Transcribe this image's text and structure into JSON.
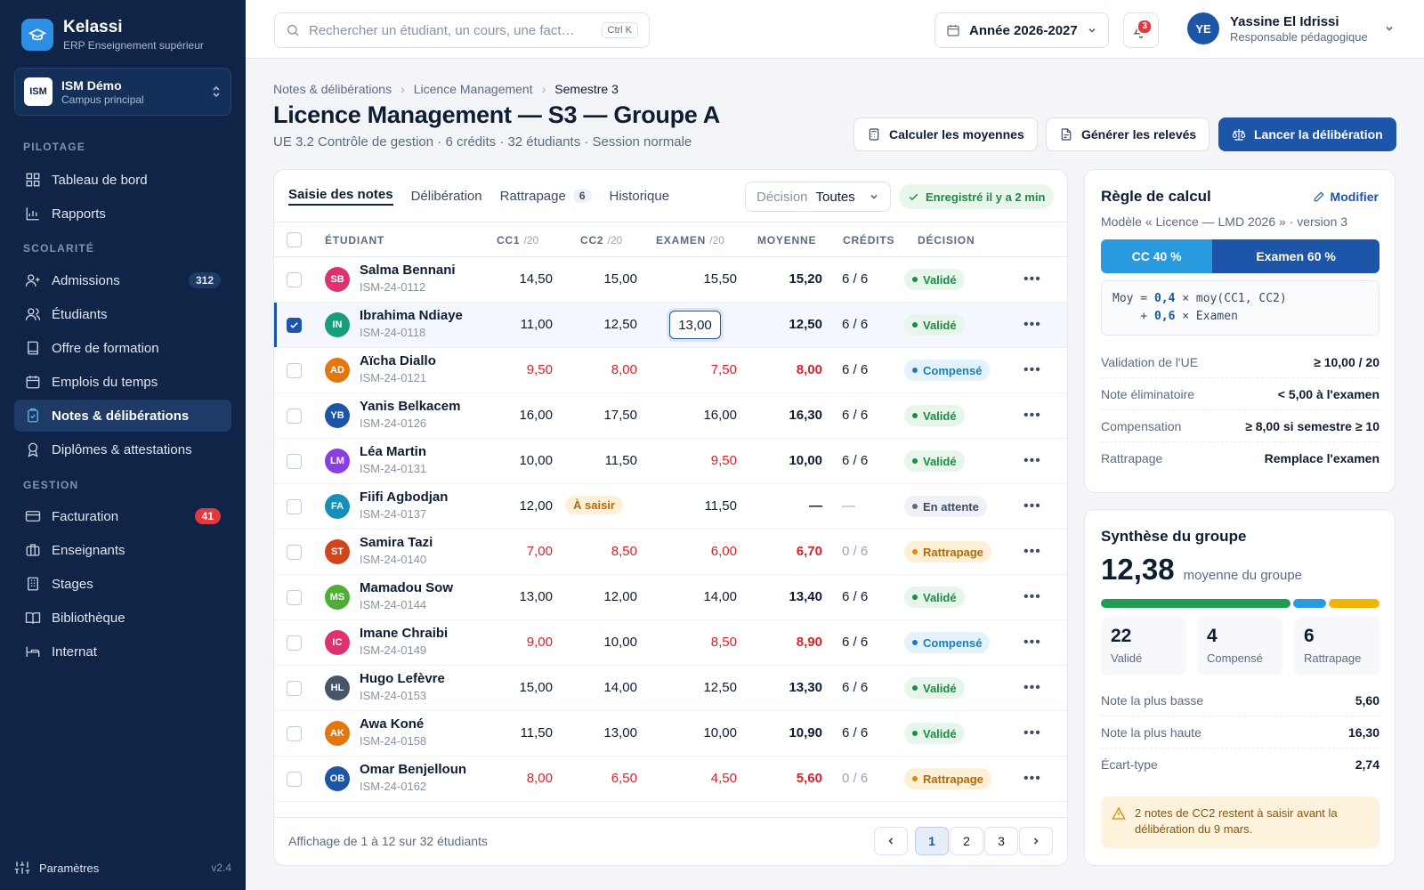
{
  "brand": {
    "name": "Kelassi",
    "subtitle": "ERP Enseignement supérieur"
  },
  "campus": {
    "logo": "ISM",
    "name": "ISM Démo",
    "subtitle": "Campus principal"
  },
  "nav": {
    "sections": [
      "PILOTAGE",
      "SCOLARITÉ",
      "GESTION"
    ],
    "pilotage": [
      {
        "label": "Tableau de bord",
        "icon": "dashboard-icon"
      },
      {
        "label": "Rapports",
        "icon": "chart-icon"
      }
    ],
    "scolarite": [
      {
        "label": "Admissions",
        "icon": "user-plus-icon",
        "count": "312"
      },
      {
        "label": "Étudiants",
        "icon": "users-icon"
      },
      {
        "label": "Offre de formation",
        "icon": "book-icon"
      },
      {
        "label": "Emplois du temps",
        "icon": "calendar-icon"
      },
      {
        "label": "Notes & délibérations",
        "icon": "clipboard-icon",
        "active": true
      },
      {
        "label": "Diplômes & attestations",
        "icon": "award-icon"
      }
    ],
    "gestion": [
      {
        "label": "Facturation",
        "icon": "card-icon",
        "count": "41"
      },
      {
        "label": "Enseignants",
        "icon": "briefcase-icon"
      },
      {
        "label": "Stages",
        "icon": "building-icon"
      },
      {
        "label": "Bibliothèque",
        "icon": "library-icon"
      },
      {
        "label": "Internat",
        "icon": "bed-icon"
      }
    ],
    "settings": "Paramètres",
    "version": "v2.4"
  },
  "topbar": {
    "search_placeholder": "Rechercher un étudiant, un cours, une fact…",
    "shortcut": "Ctrl K",
    "year": "Année 2026-2027",
    "notifications": "3",
    "user": {
      "initials": "YE",
      "name": "Yassine El Idrissi",
      "role": "Responsable pédagogique"
    }
  },
  "breadcrumb": [
    "Notes & délibérations",
    "Licence Management",
    "Semestre 3"
  ],
  "page": {
    "title": "Licence Management — S3 — Groupe A",
    "subtitle": "UE 3.2 Contrôle de gestion · 6 crédits · 32 étudiants · Session normale",
    "actions": {
      "compute": "Calculer les moyennes",
      "transcripts": "Générer les relevés",
      "deliberate": "Lancer la délibération"
    }
  },
  "tabs": [
    {
      "label": "Saisie des notes",
      "active": true
    },
    {
      "label": "Délibération"
    },
    {
      "label": "Rattrapage",
      "count": "6"
    },
    {
      "label": "Historique"
    }
  ],
  "filter": {
    "label": "Décision",
    "value": "Toutes"
  },
  "saved": "Enregistré il y a 2 min",
  "columns": {
    "student": "ÉTUDIANT",
    "cc1": "CC1",
    "cc2": "CC2",
    "exam": "EXAMEN",
    "unit": "/20",
    "avg": "MOYENNE",
    "credits": "CRÉDITS",
    "decision": "DÉCISION"
  },
  "colors": {
    "primary": "#1d56a8",
    "accent": "#2a9ade",
    "danger": "#d6222a",
    "success": "#1f8a48",
    "warning": "#d68a10"
  },
  "students": [
    {
      "initials": "SB",
      "name": "Salma Bennani",
      "id": "ISM-24-0112",
      "cc1": "14,50",
      "cc2": "15,00",
      "exam": "15,50",
      "avg": "15,20",
      "credits": "6 / 6",
      "decision": "Validé",
      "status": "valide",
      "color": "#e0316f"
    },
    {
      "initials": "IN",
      "name": "Ibrahima Ndiaye",
      "id": "ISM-24-0118",
      "cc1": "11,00",
      "cc2": "12,50",
      "exam": "13,00",
      "avg": "12,50",
      "credits": "6 / 6",
      "decision": "Validé",
      "status": "valide",
      "color": "#169f7a",
      "selected": true,
      "editing": true
    },
    {
      "initials": "AD",
      "name": "Aïcha Diallo",
      "id": "ISM-24-0121",
      "cc1": "9,50",
      "cc2": "8,00",
      "exam": "7,50",
      "avg": "8,00",
      "credits": "6 / 6",
      "decision": "Compensé",
      "status": "compense",
      "color": "#e3760f",
      "red": true
    },
    {
      "initials": "YB",
      "name": "Yanis Belkacem",
      "id": "ISM-24-0126",
      "cc1": "16,00",
      "cc2": "17,50",
      "exam": "16,00",
      "avg": "16,30",
      "credits": "6 / 6",
      "decision": "Validé",
      "status": "valide",
      "color": "#1d56a8"
    },
    {
      "initials": "LM",
      "name": "Léa Martin",
      "id": "ISM-24-0131",
      "cc1": "10,00",
      "cc2": "11,50",
      "exam": "9,50",
      "avg": "10,00",
      "credits": "6 / 6",
      "decision": "Validé",
      "status": "valide",
      "color": "#8a3ee0",
      "redExam": true
    },
    {
      "initials": "FA",
      "name": "Fiifi Agbodjan",
      "id": "ISM-24-0137",
      "cc1": "12,00",
      "cc2": "À saisir",
      "exam": "11,50",
      "avg": "—",
      "credits": "—",
      "decision": "En attente",
      "status": "attente",
      "color": "#1690b8",
      "pending": true
    },
    {
      "initials": "ST",
      "name": "Samira Tazi",
      "id": "ISM-24-0140",
      "cc1": "7,00",
      "cc2": "8,50",
      "exam": "6,00",
      "avg": "6,70",
      "credits": "0 / 6",
      "decision": "Rattrapage",
      "status": "rattrapage",
      "color": "#d1451a",
      "red": true,
      "zero": true
    },
    {
      "initials": "MS",
      "name": "Mamadou Sow",
      "id": "ISM-24-0144",
      "cc1": "13,00",
      "cc2": "12,00",
      "exam": "14,00",
      "avg": "13,40",
      "credits": "6 / 6",
      "decision": "Validé",
      "status": "valide",
      "color": "#4fae35"
    },
    {
      "initials": "IC",
      "name": "Imane Chraibi",
      "id": "ISM-24-0149",
      "cc1": "9,00",
      "cc2": "10,00",
      "exam": "8,50",
      "avg": "8,90",
      "credits": "6 / 6",
      "decision": "Compensé",
      "status": "compense",
      "color": "#e0316f",
      "redMix": true
    },
    {
      "initials": "HL",
      "name": "Hugo Lefèvre",
      "id": "ISM-24-0153",
      "cc1": "15,00",
      "cc2": "14,00",
      "exam": "12,50",
      "avg": "13,30",
      "credits": "6 / 6",
      "decision": "Validé",
      "status": "valide",
      "color": "#475569"
    },
    {
      "initials": "AK",
      "name": "Awa Koné",
      "id": "ISM-24-0158",
      "cc1": "11,50",
      "cc2": "13,00",
      "exam": "10,00",
      "avg": "10,90",
      "credits": "6 / 6",
      "decision": "Validé",
      "status": "valide",
      "color": "#e3760f"
    },
    {
      "initials": "OB",
      "name": "Omar Benjelloun",
      "id": "ISM-24-0162",
      "cc1": "8,00",
      "cc2": "6,50",
      "exam": "4,50",
      "avg": "5,60",
      "credits": "0 / 6",
      "decision": "Rattrapage",
      "status": "rattrapage",
      "color": "#1d56a8",
      "red": true,
      "zero": true
    }
  ],
  "table_footer": "Affichage de 1 à 12 sur 32 étudiants",
  "pagination": [
    "1",
    "2",
    "3"
  ],
  "rule": {
    "title": "Règle de calcul",
    "edit": "Modifier",
    "model": "Modèle « Licence — LMD 2026 » · version 3",
    "cc_share": "CC 40 %",
    "exam_share": "Examen 60 %",
    "formula": {
      "line1_a": "Moy = ",
      "w1": "0,4",
      "line1_b": " × moy(CC1, CC2)",
      "line2_a": "    + ",
      "w2": "0,6",
      "line2_b": " × Examen"
    },
    "items": [
      {
        "k": "Validation de l'UE",
        "v": "≥ 10,00 / 20"
      },
      {
        "k": "Note éliminatoire",
        "v": "< 5,00 à l'examen"
      },
      {
        "k": "Compensation",
        "v": "≥ 8,00 si semestre ≥ 10"
      },
      {
        "k": "Rattrapage",
        "v": "Remplace l'examen"
      }
    ]
  },
  "summary": {
    "title": "Synthèse du groupe",
    "average": "12,38",
    "average_label": "moyenne du groupe",
    "stats": [
      {
        "n": "22",
        "l": "Validé"
      },
      {
        "n": "4",
        "l": "Compensé"
      },
      {
        "n": "6",
        "l": "Rattrapage"
      }
    ],
    "distribution": [
      {
        "value": 22,
        "color": "#1f9d55"
      },
      {
        "value": 4,
        "color": "#2a9ade"
      },
      {
        "value": 6,
        "color": "#f0b400"
      }
    ],
    "items": [
      {
        "k": "Note la plus basse",
        "v": "5,60"
      },
      {
        "k": "Note la plus haute",
        "v": "16,30"
      },
      {
        "k": "Écart-type",
        "v": "2,74"
      }
    ],
    "alert": "2 notes de CC2 restent à saisir avant la délibération du 9 mars."
  }
}
